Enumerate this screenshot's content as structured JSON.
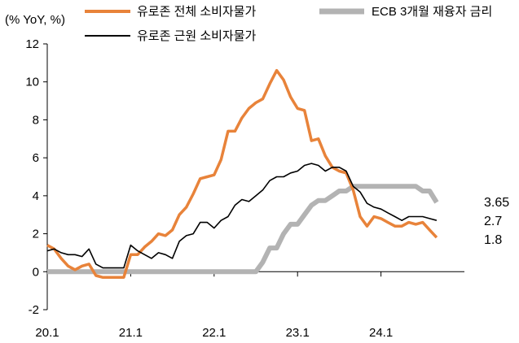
{
  "chart_data": {
    "type": "line",
    "ylabel": "(% YoY, %)",
    "ylim": [
      -2,
      12
    ],
    "yticks": [
      -2,
      0,
      2,
      4,
      6,
      8,
      10,
      12
    ],
    "xlim": [
      0,
      60
    ],
    "xticks": [
      {
        "label": "20.1",
        "index": 0
      },
      {
        "label": "21.1",
        "index": 12
      },
      {
        "label": "22.1",
        "index": 24
      },
      {
        "label": "23.1",
        "index": 36
      },
      {
        "label": "24.1",
        "index": 48
      }
    ],
    "x_start": "2020-01",
    "x_step": "month",
    "legend_position": "top",
    "end_labels": [
      "3.65",
      "2.7",
      "1.8"
    ],
    "series": [
      {
        "name": "유로존 전체 소비자물가",
        "color": "#E8833A",
        "width": 3.5,
        "values": [
          1.4,
          1.2,
          0.7,
          0.3,
          0.1,
          0.3,
          0.4,
          -0.2,
          -0.3,
          -0.3,
          -0.3,
          -0.3,
          0.9,
          0.9,
          1.3,
          1.6,
          2.0,
          1.9,
          2.2,
          3.0,
          3.4,
          4.1,
          4.9,
          5.0,
          5.1,
          5.9,
          7.4,
          7.4,
          8.1,
          8.6,
          8.9,
          9.1,
          9.9,
          10.6,
          10.1,
          9.2,
          8.6,
          8.5,
          6.9,
          7.0,
          6.1,
          5.5,
          5.3,
          5.2,
          4.3,
          2.9,
          2.4,
          2.9,
          2.8,
          2.6,
          2.4,
          2.4,
          2.6,
          2.5,
          2.6,
          2.2,
          1.8
        ]
      },
      {
        "name": "유로존 근원 소비자물가",
        "color": "#000000",
        "width": 1.6,
        "values": [
          1.1,
          1.2,
          1.0,
          0.9,
          0.9,
          0.8,
          1.2,
          0.4,
          0.2,
          0.2,
          0.2,
          0.2,
          1.4,
          1.1,
          0.9,
          0.7,
          1.0,
          0.9,
          0.7,
          1.6,
          1.9,
          2.0,
          2.6,
          2.6,
          2.3,
          2.7,
          2.9,
          3.5,
          3.8,
          3.7,
          4.0,
          4.3,
          4.8,
          5.0,
          5.0,
          5.2,
          5.3,
          5.6,
          5.7,
          5.6,
          5.3,
          5.5,
          5.5,
          5.3,
          4.5,
          4.2,
          3.6,
          3.4,
          3.3,
          3.1,
          2.9,
          2.7,
          2.9,
          2.9,
          2.9,
          2.8,
          2.7
        ]
      },
      {
        "name": "ECB 3개월 재융자 금리",
        "color": "#B3B3B3",
        "width": 6,
        "values": [
          0,
          0,
          0,
          0,
          0,
          0,
          0,
          0,
          0,
          0,
          0,
          0,
          0,
          0,
          0,
          0,
          0,
          0,
          0,
          0,
          0,
          0,
          0,
          0,
          0,
          0,
          0,
          0,
          0,
          0,
          0,
          0.5,
          1.25,
          1.25,
          2.0,
          2.5,
          2.5,
          3.0,
          3.5,
          3.75,
          3.75,
          4.0,
          4.25,
          4.25,
          4.5,
          4.5,
          4.5,
          4.5,
          4.5,
          4.5,
          4.5,
          4.5,
          4.5,
          4.5,
          4.25,
          4.25,
          3.65
        ]
      }
    ]
  }
}
